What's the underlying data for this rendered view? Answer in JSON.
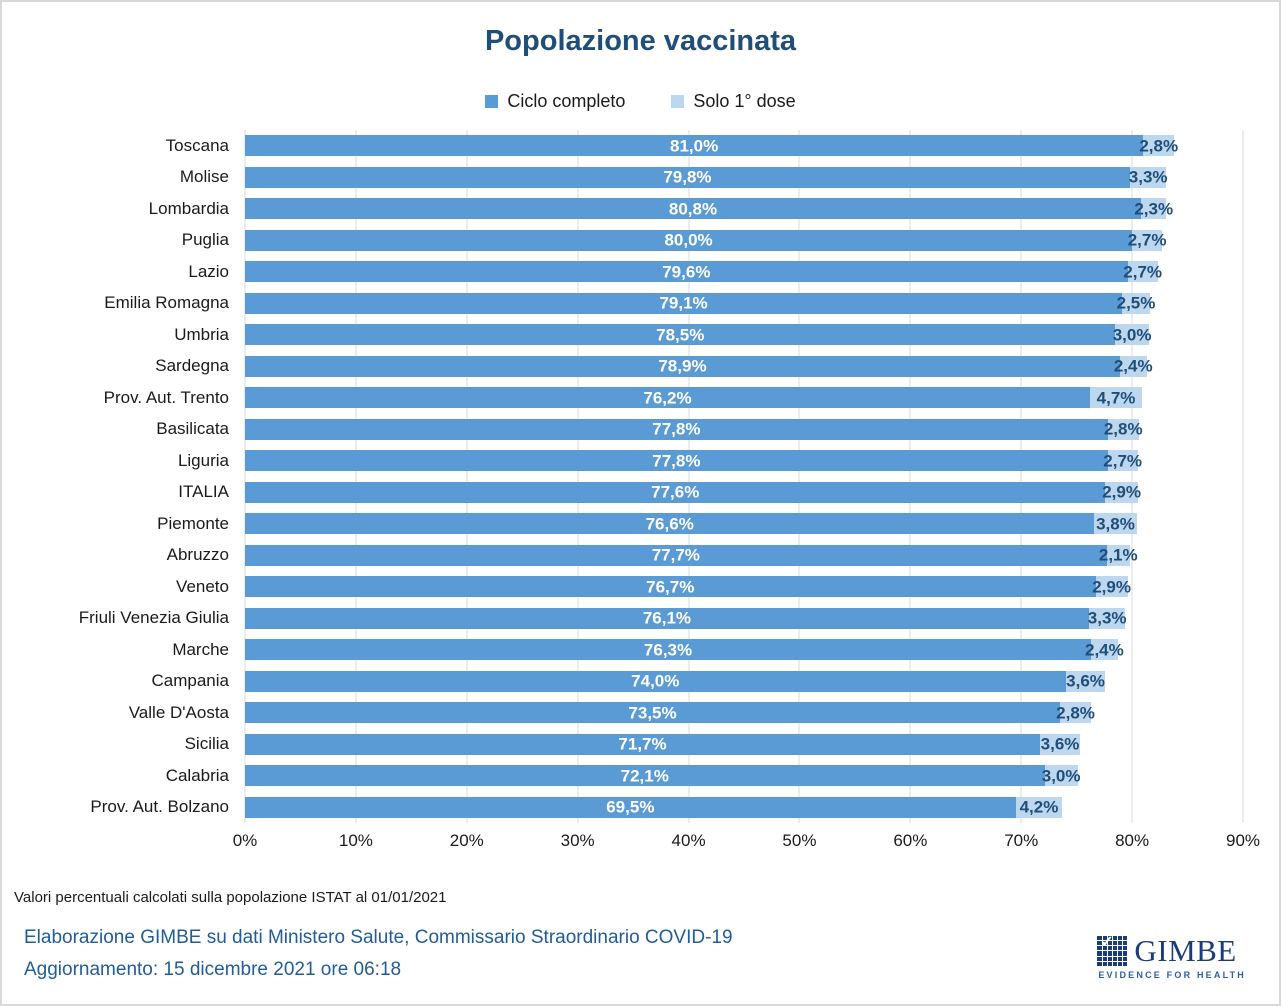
{
  "colors": {
    "title": "#1F4E79",
    "footer_text": "#1F5C99",
    "bar_main": "#5B9BD5",
    "bar_secondary": "#BDD7EE",
    "value_label_main": "#FFFFFF",
    "value_label_secondary": "#1F4E79",
    "gridline": "#D9D9D9",
    "logo_navy": "#1B3C7A",
    "logo_tagline": "#2C5FA8"
  },
  "legend": [
    {
      "label": "Ciclo completo",
      "color": "#5B9BD5"
    },
    {
      "label": "Solo 1° dose",
      "color": "#BDD7EE"
    }
  ],
  "chart_data": {
    "type": "bar",
    "orientation": "horizontal",
    "stacked": true,
    "title": "Popolazione vaccinata",
    "categories": [
      "Toscana",
      "Molise",
      "Lombardia",
      "Puglia",
      "Lazio",
      "Emilia Romagna",
      "Umbria",
      "Sardegna",
      "Prov. Aut. Trento",
      "Basilicata",
      "Liguria",
      "ITALIA",
      "Piemonte",
      "Abruzzo",
      "Veneto",
      "Friuli Venezia Giulia",
      "Marche",
      "Campania",
      "Valle D'Aosta",
      "Sicilia",
      "Calabria",
      "Prov. Aut. Bolzano"
    ],
    "series": [
      {
        "name": "Ciclo completo",
        "color": "#5B9BD5",
        "label_color": "#FFFFFF",
        "values": [
          81.0,
          79.8,
          80.8,
          80.0,
          79.6,
          79.1,
          78.5,
          78.9,
          76.2,
          77.8,
          77.8,
          77.6,
          76.6,
          77.7,
          76.7,
          76.1,
          76.3,
          74.0,
          73.5,
          71.7,
          72.1,
          69.5
        ],
        "labels": [
          "81,0%",
          "79,8%",
          "80,8%",
          "80,0%",
          "79,6%",
          "79,1%",
          "78,5%",
          "78,9%",
          "76,2%",
          "77,8%",
          "77,8%",
          "77,6%",
          "76,6%",
          "77,7%",
          "76,7%",
          "76,1%",
          "76,3%",
          "74,0%",
          "73,5%",
          "71,7%",
          "72,1%",
          "69,5%"
        ]
      },
      {
        "name": "Solo 1° dose",
        "color": "#BDD7EE",
        "label_color": "#1F4E79",
        "values": [
          2.8,
          3.3,
          2.3,
          2.7,
          2.7,
          2.5,
          3.0,
          2.4,
          4.7,
          2.8,
          2.7,
          2.9,
          3.8,
          2.1,
          2.9,
          3.3,
          2.4,
          3.6,
          2.8,
          3.6,
          3.0,
          4.2
        ],
        "labels": [
          "2,8%",
          "3,3%",
          "2,3%",
          "2,7%",
          "2,7%",
          "2,5%",
          "3,0%",
          "2,4%",
          "4,7%",
          "2,8%",
          "2,7%",
          "2,9%",
          "3,8%",
          "2,1%",
          "2,9%",
          "3,3%",
          "2,4%",
          "3,6%",
          "2,8%",
          "3,6%",
          "3,0%",
          "4,2%"
        ]
      }
    ],
    "xlim": [
      0,
      90
    ],
    "x_ticks": [
      "0%",
      "10%",
      "20%",
      "30%",
      "40%",
      "50%",
      "60%",
      "70%",
      "80%",
      "90%"
    ],
    "grid": true,
    "legend_position": "top"
  },
  "footnote": "Valori percentuali calcolati sulla popolazione ISTAT al 01/01/2021",
  "footer": {
    "line1": "Elaborazione GIMBE su dati Ministero Salute, Commissario Straordinario COVID-19",
    "line2": "Aggiornamento: 15 dicembre 2021 ore 06:18"
  },
  "logo": {
    "name": "GIMBE",
    "tagline": "EVIDENCE FOR HEALTH"
  }
}
